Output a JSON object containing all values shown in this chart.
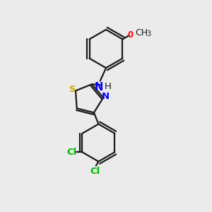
{
  "bg_color": "#ebebeb",
  "bond_color": "#1a1a1a",
  "N_color": "#0000ff",
  "S_color": "#ccaa00",
  "O_color": "#ff0000",
  "Cl_color": "#00bb00",
  "line_width": 1.6,
  "font_size": 9.5,
  "xlim": [
    0,
    10
  ],
  "ylim": [
    0,
    10
  ]
}
